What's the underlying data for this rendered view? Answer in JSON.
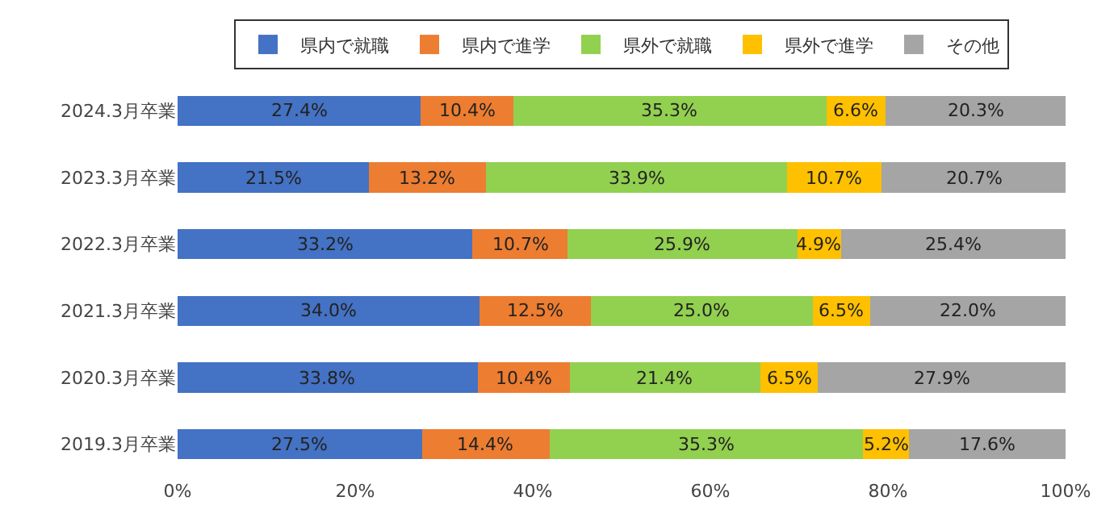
{
  "chart_data": {
    "type": "bar",
    "orientation": "horizontal",
    "stacked": true,
    "categories": [
      "2024.3月卒業",
      "2023.3月卒業",
      "2022.3月卒業",
      "2021.3月卒業",
      "2020.3月卒業",
      "2019.3月卒業"
    ],
    "series": [
      {
        "name": "県内で就職",
        "color": "#4472c4",
        "values": [
          27.4,
          21.5,
          33.2,
          34.0,
          33.8,
          27.5
        ],
        "value_labels": [
          "27.4%",
          "21.5%",
          "33.2%",
          "34.0%",
          "33.8%",
          "27.5%"
        ]
      },
      {
        "name": "県内で進学",
        "color": "#ed7d31",
        "values": [
          10.4,
          13.2,
          10.7,
          12.5,
          10.4,
          14.4
        ],
        "value_labels": [
          "10.4%",
          "13.2%",
          "10.7%",
          "12.5%",
          "10.4%",
          "14.4%"
        ]
      },
      {
        "name": "県外で就職",
        "color": "#92d050",
        "values": [
          35.3,
          33.9,
          25.9,
          25.0,
          21.4,
          35.3
        ],
        "value_labels": [
          "35.3%",
          "33.9%",
          "25.9%",
          "25.0%",
          "21.4%",
          "35.3%"
        ]
      },
      {
        "name": "県外で進学",
        "color": "#ffc000",
        "values": [
          6.6,
          10.7,
          4.9,
          6.5,
          6.5,
          5.2
        ],
        "value_labels": [
          "6.6%",
          "10.7%",
          "4.9%",
          "6.5%",
          "6.5%",
          "5.2%"
        ]
      },
      {
        "name": "その他",
        "color": "#a5a5a5",
        "values": [
          20.3,
          20.7,
          25.4,
          22.0,
          27.9,
          17.6
        ],
        "value_labels": [
          "20.3%",
          "20.7%",
          "25.4%",
          "22.0%",
          "27.9%",
          "17.6%"
        ]
      }
    ],
    "xlim": [
      0,
      100
    ],
    "xticks": [
      {
        "value": 0,
        "label": "0%"
      },
      {
        "value": 20,
        "label": "20%"
      },
      {
        "value": 40,
        "label": "40%"
      },
      {
        "value": 60,
        "label": "60%"
      },
      {
        "value": 80,
        "label": "80%"
      },
      {
        "value": 100,
        "label": "100%"
      }
    ],
    "grid": false,
    "legend": "top"
  }
}
